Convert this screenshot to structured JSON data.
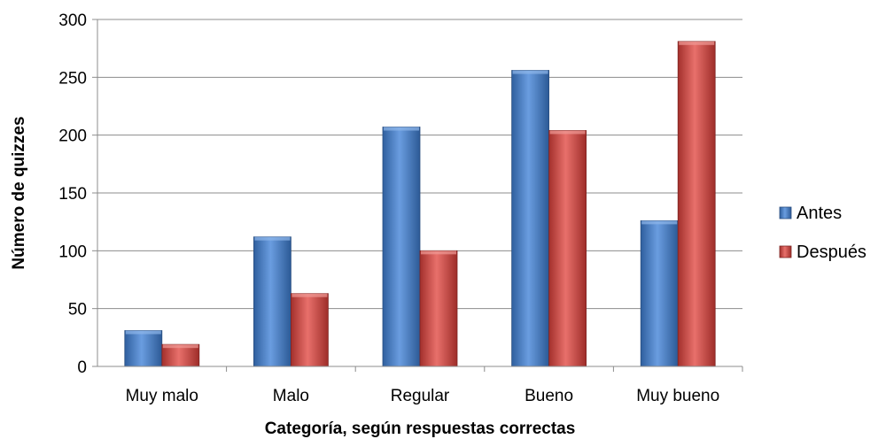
{
  "chart_data": {
    "type": "bar",
    "categories": [
      "Muy malo",
      "Malo",
      "Regular",
      "Bueno",
      "Muy bueno"
    ],
    "series": [
      {
        "name": "Antes",
        "values": [
          31,
          112,
          207,
          256,
          126
        ],
        "color": "#4F81BD"
      },
      {
        "name": "Después",
        "values": [
          19,
          63,
          100,
          204,
          281
        ],
        "color": "#C0504D"
      }
    ],
    "title": "",
    "xlabel": "Categoría, según respuestas correctas",
    "ylabel": "Número de quizzes",
    "ylim": [
      0,
      300
    ],
    "yticks": [
      "0",
      "50",
      "100",
      "150",
      "200",
      "250",
      "300"
    ],
    "grid": true,
    "legend": "right"
  }
}
